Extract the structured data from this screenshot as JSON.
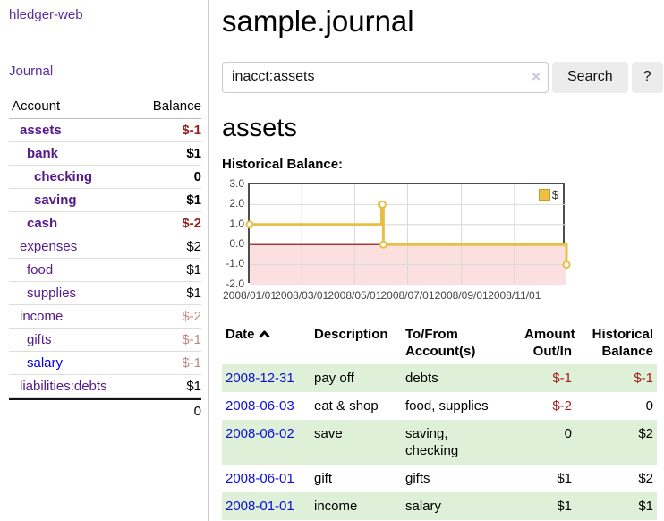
{
  "colors": {
    "nav_purple": "#5a2ca0",
    "account_purple": "#551a8b",
    "link_blue": "#0f0fd6",
    "negative_red": "#9d1e1e",
    "muted_negative_red": "#c38585",
    "row_stripe_green": "#dff0d8",
    "chart_line_gold": "#e7bf45",
    "legend_gold": "#edc240"
  },
  "sidebar": {
    "app_title": "hledger-web",
    "journal_link": "Journal",
    "account_header": "Account",
    "balance_header": "Balance",
    "accounts": [
      {
        "name": "assets",
        "balance": "$-1"
      },
      {
        "name": "bank",
        "balance": "$1"
      },
      {
        "name": "checking",
        "balance": "0"
      },
      {
        "name": "saving",
        "balance": "$1"
      },
      {
        "name": "cash",
        "balance": "$-2"
      },
      {
        "name": "expenses",
        "balance": "$2"
      },
      {
        "name": "food",
        "balance": "$1"
      },
      {
        "name": "supplies",
        "balance": "$1"
      },
      {
        "name": "income",
        "balance": "$-2"
      },
      {
        "name": "gifts",
        "balance": "$-1"
      },
      {
        "name": "salary",
        "balance": "$-1"
      },
      {
        "name": "liabilities:debts",
        "balance": "$1"
      }
    ],
    "total": "0"
  },
  "main": {
    "title": "sample.journal",
    "search": {
      "value": "inacct:assets",
      "clear_icon": "×",
      "button_label": "Search",
      "help_label": "?"
    },
    "account_heading": "assets"
  },
  "chart_data": {
    "type": "line",
    "step": true,
    "title": "Historical Balance:",
    "series": [
      {
        "name": "$",
        "color": "#e7bf45",
        "points": [
          [
            "2008-01-01",
            1
          ],
          [
            "2008-06-01",
            2
          ],
          [
            "2008-06-02",
            2
          ],
          [
            "2008-06-03",
            0
          ],
          [
            "2008-12-31",
            -1
          ]
        ]
      }
    ],
    "ylim": [
      -2,
      3
    ],
    "yticks": [
      "3.0",
      "2.0",
      "1.0",
      "0.0",
      "-1.0",
      "-2.0"
    ],
    "xticks": [
      "2008/01/01",
      "2008/03/01",
      "2008/05/01",
      "2008/07/01",
      "2008/09/01",
      "2008/11/01"
    ],
    "x_start": "2008-01-01",
    "x_end": "2008-12-31",
    "legend_position": "top-right",
    "grid": true,
    "grid_color": "#d9d9d9",
    "negative_fill": "#fcdfdf",
    "zero_line_color": "#8f0000"
  },
  "table": {
    "headers": {
      "date": "Date",
      "sort_icon": "chevron-up",
      "description": "Description",
      "tofrom": "To/From\nAccount(s)",
      "amount": "Amount\nOut/In",
      "balance": "Historical\nBalance"
    },
    "rows": [
      {
        "date": "2008-12-31",
        "description": "pay off",
        "tofrom": "debts",
        "amount": "$-1",
        "balance": "$-1"
      },
      {
        "date": "2008-06-03",
        "description": "eat & shop",
        "tofrom": "food, supplies",
        "amount": "$-2",
        "balance": "0"
      },
      {
        "date": "2008-06-02",
        "description": "save",
        "tofrom": "saving,\nchecking",
        "amount": "0",
        "balance": "$2"
      },
      {
        "date": "2008-06-01",
        "description": "gift",
        "tofrom": "gifts",
        "amount": "$1",
        "balance": "$2"
      },
      {
        "date": "2008-01-01",
        "description": "income",
        "tofrom": "salary",
        "amount": "$1",
        "balance": "$1"
      }
    ]
  }
}
